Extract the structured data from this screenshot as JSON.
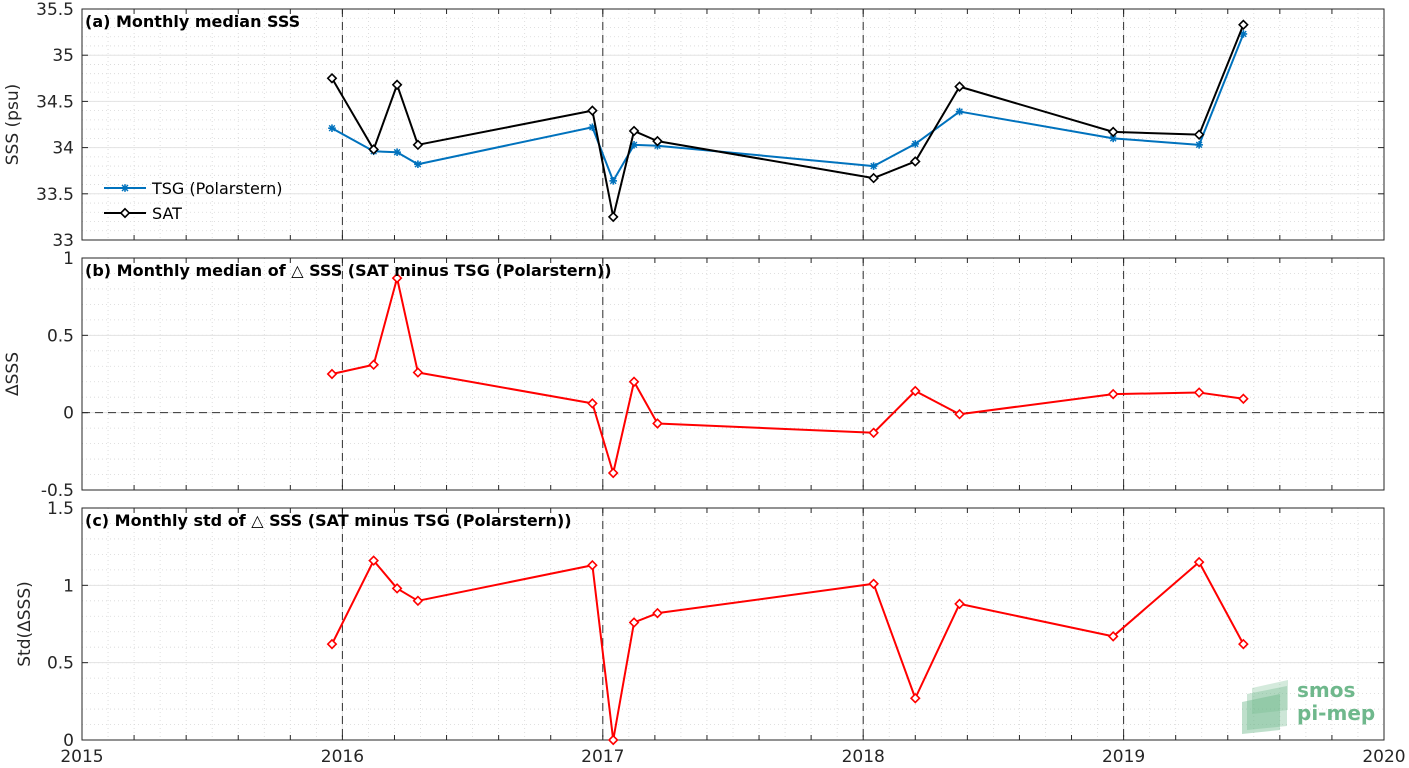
{
  "chart_data": [
    {
      "type": "line",
      "panel": "a",
      "title": "(a) Monthly median SSS",
      "xlabel": "",
      "ylabel": "SSS (psu)",
      "xlim": [
        2015,
        2020
      ],
      "ylim": [
        33,
        35.5
      ],
      "yticks": [
        33,
        33.5,
        34,
        34.5,
        35,
        35.5
      ],
      "ytick_labels": [
        "33",
        "33.5",
        "34",
        "34.5",
        "35",
        "35.5"
      ],
      "grid": true,
      "legend_position": "lower-left",
      "series": [
        {
          "name": "TSG (Polarstern)",
          "color": "#0072bd",
          "marker": "asterisk",
          "x": [
            2015.96,
            2016.12,
            2016.21,
            2016.29,
            2016.96,
            2017.04,
            2017.12,
            2017.21,
            2018.04,
            2018.2,
            2018.37,
            2018.96,
            2019.29,
            2019.46
          ],
          "y": [
            34.21,
            33.96,
            33.95,
            33.82,
            34.22,
            33.64,
            34.03,
            34.02,
            33.8,
            34.04,
            34.39,
            34.1,
            34.03,
            35.23
          ]
        },
        {
          "name": "SAT",
          "color": "#000000",
          "marker": "diamond",
          "x": [
            2015.96,
            2016.12,
            2016.21,
            2016.29,
            2016.96,
            2017.04,
            2017.12,
            2017.21,
            2018.04,
            2018.2,
            2018.37,
            2018.96,
            2019.29,
            2019.46
          ],
          "y": [
            34.75,
            33.98,
            34.68,
            34.03,
            34.4,
            33.25,
            34.18,
            34.07,
            33.67,
            33.85,
            34.66,
            34.17,
            34.14,
            35.33
          ]
        }
      ]
    },
    {
      "type": "line",
      "panel": "b",
      "title": "(b) Monthly median of △ SSS (SAT minus TSG (Polarstern))",
      "xlabel": "",
      "ylabel": "ΔSSS",
      "xlim": [
        2015,
        2020
      ],
      "ylim": [
        -0.5,
        1
      ],
      "yticks": [
        -0.5,
        0,
        0.5,
        1
      ],
      "ytick_labels": [
        "-0.5",
        "0",
        "0.5",
        "1"
      ],
      "zero_line": true,
      "grid": true,
      "series": [
        {
          "color": "#ff0000",
          "marker": "diamond",
          "x": [
            2015.96,
            2016.12,
            2016.21,
            2016.29,
            2016.96,
            2017.04,
            2017.12,
            2017.21,
            2018.04,
            2018.2,
            2018.37,
            2018.96,
            2019.29,
            2019.46
          ],
          "y": [
            0.25,
            0.31,
            0.87,
            0.26,
            0.06,
            -0.39,
            0.2,
            -0.07,
            -0.13,
            0.14,
            -0.01,
            0.12,
            0.13,
            0.09
          ]
        }
      ]
    },
    {
      "type": "line",
      "panel": "c",
      "title": "(c) Monthly std of △ SSS (SAT minus TSG (Polarstern))",
      "xlabel": "",
      "ylabel": "Std(ΔSSS)",
      "xlim": [
        2015,
        2020
      ],
      "ylim": [
        0,
        1.5
      ],
      "yticks": [
        0,
        0.5,
        1,
        1.5
      ],
      "ytick_labels": [
        "0",
        "0.5",
        "1",
        "1.5"
      ],
      "xticks": [
        2015,
        2016,
        2017,
        2018,
        2019,
        2020
      ],
      "xtick_labels": [
        "2015",
        "2016",
        "2017",
        "2018",
        "2019",
        "2020"
      ],
      "grid": true,
      "series": [
        {
          "color": "#ff0000",
          "marker": "diamond",
          "x": [
            2015.96,
            2016.12,
            2016.21,
            2016.29,
            2016.96,
            2017.04,
            2017.12,
            2017.21,
            2018.04,
            2018.2,
            2018.37,
            2018.96,
            2019.29,
            2019.46
          ],
          "y": [
            0.62,
            1.16,
            0.98,
            0.9,
            1.13,
            0.0,
            0.76,
            0.82,
            1.01,
            0.27,
            0.88,
            0.67,
            1.15,
            0.62
          ]
        }
      ]
    }
  ],
  "watermark": {
    "line1": "smos",
    "line2": "pi-mep",
    "color": "#6fb88c"
  }
}
